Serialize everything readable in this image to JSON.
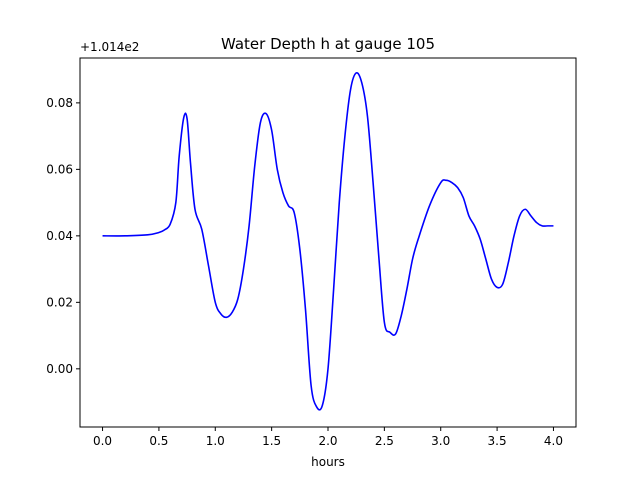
{
  "chart_data": {
    "type": "line",
    "title": "Water Depth h at gauge 105",
    "xlabel": "hours",
    "ylabel": "",
    "offset_text": "+1.014e2",
    "xlim": [
      -0.2,
      4.2
    ],
    "ylim": [
      -0.0175,
      0.0935
    ],
    "xticks": [
      0.0,
      0.5,
      1.0,
      1.5,
      2.0,
      2.5,
      3.0,
      3.5,
      4.0
    ],
    "xtick_labels": [
      "0.0",
      "0.5",
      "1.0",
      "1.5",
      "2.0",
      "2.5",
      "3.0",
      "3.5",
      "4.0"
    ],
    "yticks": [
      0.0,
      0.02,
      0.04,
      0.06,
      0.08
    ],
    "ytick_labels": [
      "0.00",
      "0.02",
      "0.04",
      "0.06",
      "0.08"
    ],
    "grid": false,
    "line_color": "#0000ff",
    "series": [
      {
        "x": [
          0.0,
          0.2,
          0.4,
          0.5,
          0.55,
          0.6,
          0.65,
          0.68,
          0.72,
          0.75,
          0.78,
          0.82,
          0.88,
          0.94,
          1.0,
          1.05,
          1.1,
          1.15,
          1.2,
          1.25,
          1.3,
          1.35,
          1.4,
          1.45,
          1.5,
          1.55,
          1.6,
          1.65,
          1.7,
          1.75,
          1.8,
          1.85,
          1.9,
          1.95,
          2.0,
          2.05,
          2.1,
          2.15,
          2.2,
          2.25,
          2.3,
          2.35,
          2.4,
          2.45,
          2.5,
          2.55,
          2.6,
          2.65,
          2.7,
          2.75,
          2.8,
          2.9,
          3.0,
          3.05,
          3.1,
          3.15,
          3.2,
          3.25,
          3.3,
          3.35,
          3.4,
          3.45,
          3.5,
          3.55,
          3.6,
          3.65,
          3.7,
          3.75,
          3.8,
          3.85,
          3.9,
          3.95,
          4.0
        ],
        "y": [
          0.04,
          0.04,
          0.0403,
          0.041,
          0.0418,
          0.0435,
          0.05,
          0.064,
          0.0755,
          0.0752,
          0.062,
          0.048,
          0.042,
          0.031,
          0.02,
          0.0165,
          0.0155,
          0.017,
          0.021,
          0.03,
          0.043,
          0.061,
          0.074,
          0.0768,
          0.0718,
          0.06,
          0.053,
          0.049,
          0.047,
          0.036,
          0.018,
          -0.005,
          -0.0115,
          -0.011,
          0.0,
          0.024,
          0.05,
          0.07,
          0.084,
          0.089,
          0.086,
          0.076,
          0.056,
          0.034,
          0.014,
          0.011,
          0.0105,
          0.016,
          0.024,
          0.033,
          0.039,
          0.049,
          0.056,
          0.0567,
          0.056,
          0.0545,
          0.0515,
          0.046,
          0.043,
          0.039,
          0.033,
          0.027,
          0.0245,
          0.0255,
          0.032,
          0.04,
          0.046,
          0.048,
          0.046,
          0.044,
          0.043,
          0.043,
          0.043
        ]
      }
    ]
  }
}
